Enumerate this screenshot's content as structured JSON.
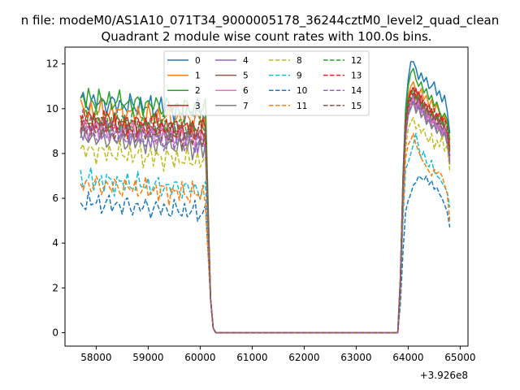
{
  "figure": {
    "suptitle": "n file: modeM0/AS1A10_071T34_9000005178_36244cztM0_level2_quad_clean",
    "background": "#ffffff"
  },
  "chart_data": {
    "type": "line",
    "title": "Quadrant 2 module wise count rates with 100.0s bins.",
    "xlabel": "",
    "ylabel": "",
    "x_offset_label": "+3.926e8",
    "xlim": [
      57400,
      65150
    ],
    "ylim": [
      -0.6,
      12.75
    ],
    "xticks": [
      58000,
      59000,
      60000,
      61000,
      62000,
      63000,
      64000,
      65000
    ],
    "xtick_labels": [
      "58000",
      "59000",
      "60000",
      "61000",
      "62000",
      "63000",
      "64000",
      "65000"
    ],
    "yticks": [
      0,
      2,
      4,
      6,
      8,
      10,
      12
    ],
    "ytick_labels": [
      "0",
      "2",
      "4",
      "6",
      "8",
      "10",
      "12"
    ],
    "grid": false,
    "legend_position": "upper center",
    "legend_columns": 4,
    "x_seg1_start": 57700,
    "x_step": 50,
    "seg1_points": 49,
    "x_gap_points": [
      60200,
      60250,
      60300
    ],
    "gap_values": [
      1.5,
      0.2,
      0.0
    ],
    "zero_span": [
      60300,
      63800
    ],
    "rise_points": [
      63850,
      63900,
      63950,
      64000
    ],
    "x_seg2_start": 64050,
    "seg2_points": 16,
    "series": [
      {
        "name": "0",
        "color": "#1f77b4",
        "dash": "solid",
        "seg1_base": 10.1,
        "seg2": [
          12.1,
          12.1,
          11.8,
          11.3,
          11.6,
          11.2,
          11.4,
          10.9,
          11.0,
          11.2,
          10.6,
          10.8,
          10.3,
          10.6,
          9.9,
          8.9
        ],
        "rise": [
          2.5,
          7.0,
          10.0,
          11.3
        ]
      },
      {
        "name": "1",
        "color": "#ff7f0e",
        "dash": "solid",
        "seg1_base": 9.7,
        "seg2": [
          11.0,
          11.2,
          10.8,
          10.6,
          10.9,
          10.4,
          10.6,
          10.1,
          10.4,
          9.9,
          10.2,
          9.8,
          9.5,
          9.7,
          9.3,
          8.4
        ],
        "rise": [
          2.4,
          6.8,
          9.6,
          10.6
        ]
      },
      {
        "name": "2",
        "color": "#2ca02c",
        "dash": "solid",
        "seg1_base": 10.2,
        "seg2": [
          11.6,
          11.8,
          11.3,
          11.0,
          11.2,
          10.7,
          10.9,
          10.4,
          10.6,
          10.1,
          10.3,
          9.9,
          9.6,
          9.8,
          9.5,
          8.6
        ],
        "rise": [
          2.5,
          6.9,
          9.8,
          11.0
        ]
      },
      {
        "name": "3",
        "color": "#d62728",
        "dash": "solid",
        "seg1_base": 9.3,
        "seg2": [
          10.8,
          10.5,
          10.9,
          10.3,
          10.6,
          10.0,
          10.2,
          9.8,
          10.0,
          9.6,
          9.8,
          9.4,
          9.6,
          9.2,
          8.9,
          8.1
        ],
        "rise": [
          2.3,
          6.6,
          9.4,
          10.4
        ]
      },
      {
        "name": "4",
        "color": "#9467bd",
        "dash": "solid",
        "seg1_base": 8.8,
        "seg2": [
          10.3,
          10.6,
          10.1,
          10.4,
          9.9,
          10.1,
          9.6,
          9.8,
          9.4,
          9.6,
          9.2,
          9.4,
          9.0,
          9.2,
          8.8,
          7.9
        ],
        "rise": [
          2.2,
          6.4,
          9.0,
          10.0
        ]
      },
      {
        "name": "5",
        "color": "#8c564b",
        "dash": "solid",
        "seg1_base": 9.1,
        "seg2": [
          10.5,
          10.2,
          10.6,
          10.0,
          10.3,
          9.8,
          10.0,
          9.6,
          9.8,
          9.4,
          9.6,
          9.2,
          9.4,
          9.0,
          8.7,
          7.8
        ],
        "rise": [
          2.3,
          6.5,
          9.2,
          10.2
        ]
      },
      {
        "name": "6",
        "color": "#e377c2",
        "dash": "solid",
        "seg1_base": 8.9,
        "seg2": [
          10.2,
          10.5,
          10.0,
          10.3,
          9.8,
          10.0,
          9.5,
          9.7,
          9.3,
          9.5,
          9.1,
          9.3,
          8.9,
          9.1,
          8.6,
          7.7
        ],
        "rise": [
          2.2,
          6.3,
          9.0,
          9.9
        ]
      },
      {
        "name": "7",
        "color": "#7f7f7f",
        "dash": "solid",
        "seg1_base": 8.5,
        "seg2": [
          10.0,
          10.3,
          9.8,
          10.1,
          9.6,
          9.8,
          9.3,
          9.5,
          9.1,
          9.3,
          8.9,
          9.1,
          8.7,
          8.9,
          8.4,
          7.5
        ],
        "rise": [
          2.1,
          6.1,
          8.7,
          9.7
        ]
      },
      {
        "name": "8",
        "color": "#bcbd22",
        "dash": "dashed",
        "seg1_base": 7.9,
        "seg2": [
          9.4,
          9.6,
          9.1,
          9.3,
          8.9,
          9.1,
          8.7,
          8.5,
          8.9,
          8.2,
          8.6,
          8.3,
          8.8,
          8.1,
          8.4,
          7.2
        ],
        "rise": [
          2.0,
          5.8,
          8.2,
          9.1
        ]
      },
      {
        "name": "9",
        "color": "#17becf",
        "dash": "dashed",
        "seg1_base": 6.6,
        "seg2": [
          8.0,
          8.4,
          8.9,
          8.3,
          7.8,
          8.1,
          7.6,
          7.4,
          7.7,
          7.2,
          7.0,
          6.9,
          6.7,
          6.5,
          6.3,
          5.6
        ],
        "rise": [
          1.8,
          5.0,
          7.3,
          7.6
        ]
      },
      {
        "name": "10",
        "color": "#1f77b4",
        "dash": "dashed",
        "seg1_base": 5.6,
        "seg2": [
          6.2,
          6.6,
          6.7,
          7.0,
          6.9,
          6.8,
          7.0,
          6.6,
          6.8,
          6.4,
          6.5,
          6.2,
          6.0,
          5.7,
          5.4,
          4.7
        ],
        "rise": [
          1.3,
          3.6,
          5.4,
          5.9
        ]
      },
      {
        "name": "11",
        "color": "#ff7f0e",
        "dash": "dashed",
        "seg1_base": 6.4,
        "seg2": [
          8.6,
          8.9,
          8.4,
          8.1,
          7.8,
          7.6,
          7.4,
          7.2,
          7.0,
          7.3,
          7.1,
          7.2,
          7.0,
          6.6,
          6.2,
          5.0
        ],
        "rise": [
          1.9,
          5.4,
          7.8,
          8.4
        ]
      },
      {
        "name": "12",
        "color": "#2ca02c",
        "dash": "dashed",
        "seg1_base": 9.4,
        "seg2": [
          10.6,
          10.9,
          10.4,
          10.7,
          10.1,
          10.3,
          9.9,
          10.1,
          9.7,
          9.9,
          9.5,
          9.7,
          9.3,
          9.5,
          9.1,
          8.2
        ],
        "rise": [
          2.4,
          6.7,
          9.5,
          10.4
        ]
      },
      {
        "name": "13",
        "color": "#d62728",
        "dash": "dashed",
        "seg1_base": 9.2,
        "seg2": [
          10.7,
          11.0,
          10.5,
          10.8,
          10.2,
          10.4,
          10.0,
          10.2,
          9.8,
          10.0,
          9.6,
          9.8,
          9.4,
          9.6,
          9.2,
          8.3
        ],
        "rise": [
          2.3,
          6.6,
          9.4,
          10.3
        ]
      },
      {
        "name": "14",
        "color": "#9467bd",
        "dash": "dashed",
        "seg1_base": 8.7,
        "seg2": [
          10.1,
          10.4,
          9.9,
          10.2,
          9.7,
          9.9,
          9.4,
          9.6,
          9.2,
          9.4,
          9.0,
          9.2,
          8.8,
          9.0,
          8.5,
          7.6
        ],
        "rise": [
          2.2,
          6.2,
          8.8,
          9.8
        ]
      },
      {
        "name": "15",
        "color": "#8c564b",
        "dash": "dashed",
        "seg1_base": 9.0,
        "seg2": [
          10.4,
          10.7,
          10.2,
          10.5,
          10.0,
          10.2,
          9.7,
          9.9,
          9.5,
          9.7,
          9.3,
          9.5,
          9.1,
          9.3,
          8.8,
          7.9
        ],
        "rise": [
          2.3,
          6.4,
          9.1,
          10.0
        ]
      }
    ]
  }
}
